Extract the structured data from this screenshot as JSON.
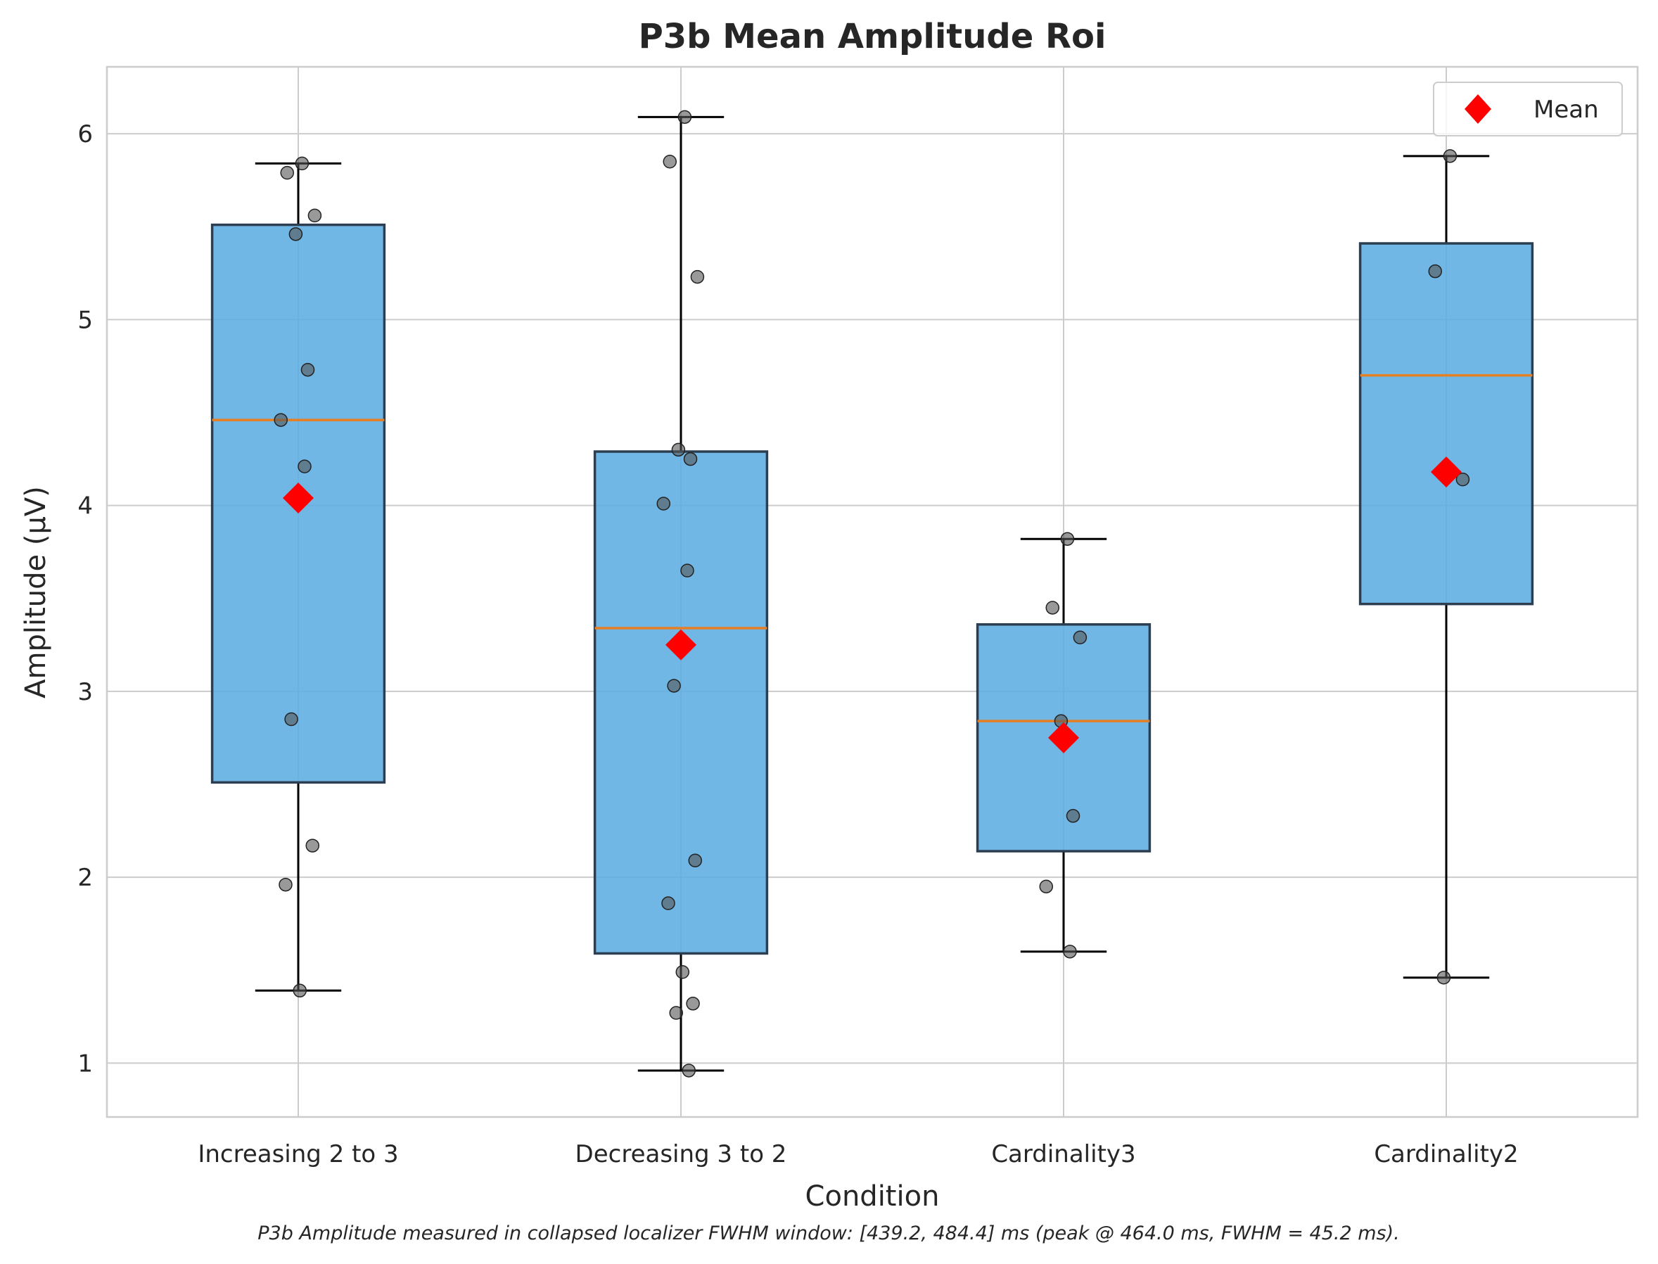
{
  "chart_data": {
    "type": "box",
    "title": "P3b Mean Amplitude Roi",
    "xlabel": "Condition",
    "ylabel": "Amplitude (µV)",
    "footnote": "P3b Amplitude measured in collapsed localizer FWHM window: [439.2, 484.4] ms (peak @ 464.0 ms, FWHM = 45.2 ms).",
    "categories": [
      "Increasing 2 to 3",
      "Decreasing 3 to 2",
      "Cardinality3",
      "Cardinality2"
    ],
    "ylim": [
      0.71,
      6.36
    ],
    "yticks": [
      1,
      2,
      3,
      4,
      5,
      6
    ],
    "grid": true,
    "legend": {
      "position": "top-right",
      "entries": [
        "Mean"
      ]
    },
    "colors": {
      "box": "#5DADE2",
      "median": "#E67E22",
      "mean": "#FF0000",
      "points": "#555555",
      "whisker": "#000000"
    },
    "boxes": [
      {
        "q1": 2.51,
        "median": 4.46,
        "q3": 5.51,
        "whisker_low": 1.39,
        "whisker_high": 5.84,
        "mean": 4.04,
        "points": [
          5.84,
          5.79,
          5.56,
          5.46,
          4.73,
          4.46,
          4.21,
          2.85,
          2.17,
          1.96,
          1.39
        ]
      },
      {
        "q1": 1.59,
        "median": 3.34,
        "q3": 4.29,
        "whisker_low": 0.96,
        "whisker_high": 6.09,
        "mean": 3.25,
        "points": [
          6.09,
          5.85,
          5.23,
          4.3,
          4.25,
          4.01,
          3.65,
          3.03,
          2.09,
          1.86,
          1.49,
          1.32,
          1.27,
          0.96
        ]
      },
      {
        "q1": 2.14,
        "median": 2.84,
        "q3": 3.36,
        "whisker_low": 1.6,
        "whisker_high": 3.82,
        "mean": 2.75,
        "points": [
          3.82,
          3.45,
          3.29,
          2.84,
          2.33,
          1.95,
          1.6
        ]
      },
      {
        "q1": 3.47,
        "median": 4.7,
        "q3": 5.41,
        "whisker_low": 1.46,
        "whisker_high": 5.88,
        "mean": 4.18,
        "points": [
          5.88,
          5.26,
          4.14,
          1.46
        ]
      }
    ]
  }
}
